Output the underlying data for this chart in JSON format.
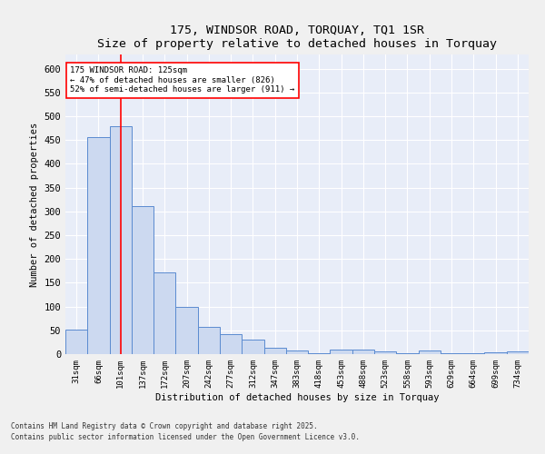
{
  "title": "175, WINDSOR ROAD, TORQUAY, TQ1 1SR",
  "subtitle": "Size of property relative to detached houses in Torquay",
  "xlabel": "Distribution of detached houses by size in Torquay",
  "ylabel": "Number of detached properties",
  "bar_color": "#ccd9f0",
  "bar_edge_color": "#5b8bd0",
  "background_color": "#e8edf8",
  "grid_color": "#ffffff",
  "fig_background": "#f0f0f0",
  "categories": [
    "31sqm",
    "66sqm",
    "101sqm",
    "137sqm",
    "172sqm",
    "207sqm",
    "242sqm",
    "277sqm",
    "312sqm",
    "347sqm",
    "383sqm",
    "418sqm",
    "453sqm",
    "488sqm",
    "523sqm",
    "558sqm",
    "593sqm",
    "629sqm",
    "664sqm",
    "699sqm",
    "734sqm"
  ],
  "values": [
    52,
    456,
    480,
    311,
    172,
    100,
    58,
    42,
    30,
    14,
    8,
    1,
    9,
    10,
    5,
    1,
    8,
    1,
    1,
    3,
    5
  ],
  "ylim": [
    0,
    630
  ],
  "yticks": [
    0,
    50,
    100,
    150,
    200,
    250,
    300,
    350,
    400,
    450,
    500,
    550,
    600
  ],
  "annotation_line1": "175 WINDSOR ROAD: 125sqm",
  "annotation_line2": "← 47% of detached houses are smaller (826)",
  "annotation_line3": "52% of semi-detached houses are larger (911) →",
  "red_line_x": 2,
  "footnote1": "Contains HM Land Registry data © Crown copyright and database right 2025.",
  "footnote2": "Contains public sector information licensed under the Open Government Licence v3.0."
}
